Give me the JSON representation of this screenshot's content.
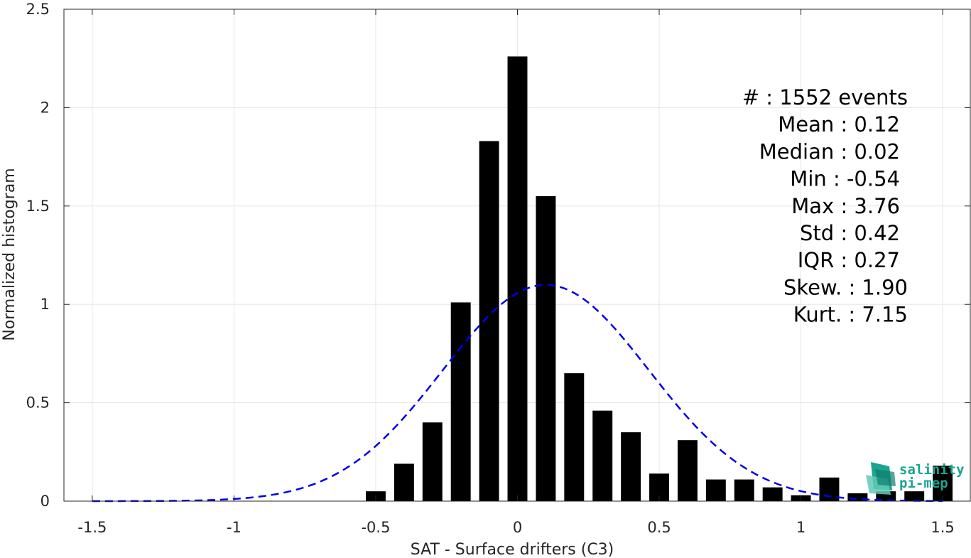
{
  "chart_data": {
    "type": "bar",
    "xlabel": "SAT - Surface drifters (C3)",
    "ylabel": "Normalized histogram",
    "xlim": [
      -1.6,
      1.6
    ],
    "ylim": [
      0,
      2.5
    ],
    "xticks": [
      -1.5,
      -1,
      -0.5,
      0,
      0.5,
      1,
      1.5
    ],
    "xtick_labels": [
      "-1.5",
      "-1",
      "-0.5",
      "0",
      "0.5",
      "1",
      "1.5"
    ],
    "yticks": [
      0,
      0.5,
      1,
      1.5,
      2,
      2.5
    ],
    "ytick_labels": [
      "0",
      "0.5",
      "1",
      "1.5",
      "2",
      "2.5"
    ],
    "grid": true,
    "bar_color": "#000000",
    "bar_width": 0.07,
    "bars": [
      {
        "x": -0.5,
        "value": 0.05
      },
      {
        "x": -0.4,
        "value": 0.19
      },
      {
        "x": -0.3,
        "value": 0.4
      },
      {
        "x": -0.2,
        "value": 1.01
      },
      {
        "x": -0.1,
        "value": 1.83
      },
      {
        "x": 0.0,
        "value": 2.26
      },
      {
        "x": 0.1,
        "value": 1.55
      },
      {
        "x": 0.2,
        "value": 0.65
      },
      {
        "x": 0.3,
        "value": 0.46
      },
      {
        "x": 0.4,
        "value": 0.35
      },
      {
        "x": 0.5,
        "value": 0.14
      },
      {
        "x": 0.6,
        "value": 0.31
      },
      {
        "x": 0.7,
        "value": 0.11
      },
      {
        "x": 0.8,
        "value": 0.11
      },
      {
        "x": 0.9,
        "value": 0.07
      },
      {
        "x": 1.0,
        "value": 0.03
      },
      {
        "x": 1.1,
        "value": 0.12
      },
      {
        "x": 1.2,
        "value": 0.04
      },
      {
        "x": 1.3,
        "value": 0.05
      },
      {
        "x": 1.4,
        "value": 0.05
      },
      {
        "x": 1.5,
        "value": 0.18
      }
    ],
    "fit_curve": {
      "style": "dashed",
      "color": "#0000ee",
      "mean": 0.1,
      "std": 0.363,
      "x_range": [
        -1.5,
        1.5
      ]
    },
    "stats": [
      {
        "label": "#  : 1552 events"
      },
      {
        "label": "Mean : 0.12"
      },
      {
        "label": "Median : 0.02"
      },
      {
        "label": "Min : -0.54"
      },
      {
        "label": "Max : 3.76"
      },
      {
        "label": "Std : 0.42"
      },
      {
        "label": "IQR : 0.27"
      },
      {
        "label": "Skew. : 1.90"
      },
      {
        "label": "Kurt. : 7.15"
      }
    ]
  },
  "logo": {
    "line1": "salinity",
    "line2": "pi-mep",
    "color": "#1aa58f"
  }
}
